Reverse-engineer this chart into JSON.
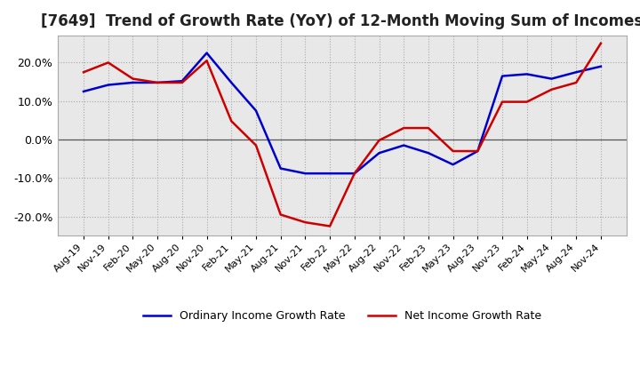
{
  "title": "[7649]  Trend of Growth Rate (YoY) of 12-Month Moving Sum of Incomes",
  "title_fontsize": 12,
  "ylim": [
    -0.25,
    0.27
  ],
  "yticks": [
    -0.2,
    -0.1,
    0.0,
    0.1,
    0.2
  ],
  "background_color": "#ffffff",
  "plot_bg_color": "#e8e8e8",
  "grid_color": "#aaaaaa",
  "zero_line_color": "#555555",
  "line_color_ordinary": "#0000cc",
  "line_color_net": "#cc0000",
  "legend_ordinary": "Ordinary Income Growth Rate",
  "legend_net": "Net Income Growth Rate",
  "x_labels": [
    "Aug-19",
    "Nov-19",
    "Feb-20",
    "May-20",
    "Aug-20",
    "Nov-20",
    "Feb-21",
    "May-21",
    "Aug-21",
    "Nov-21",
    "Feb-22",
    "May-22",
    "Aug-22",
    "Nov-22",
    "Feb-23",
    "May-23",
    "Aug-23",
    "Nov-23",
    "Feb-24",
    "May-24",
    "Aug-24",
    "Nov-24"
  ],
  "ordinary_income_growth": [
    0.125,
    0.142,
    0.148,
    0.148,
    0.152,
    0.225,
    0.148,
    0.075,
    -0.075,
    -0.088,
    -0.088,
    -0.088,
    -0.035,
    -0.015,
    -0.035,
    -0.065,
    -0.03,
    0.165,
    0.17,
    0.158,
    0.175,
    0.19
  ],
  "net_income_growth": [
    0.175,
    0.2,
    0.158,
    0.148,
    0.148,
    0.205,
    0.048,
    -0.015,
    -0.195,
    -0.215,
    -0.225,
    -0.088,
    -0.002,
    0.03,
    0.03,
    -0.03,
    -0.03,
    0.098,
    0.098,
    0.13,
    0.148,
    0.25
  ]
}
